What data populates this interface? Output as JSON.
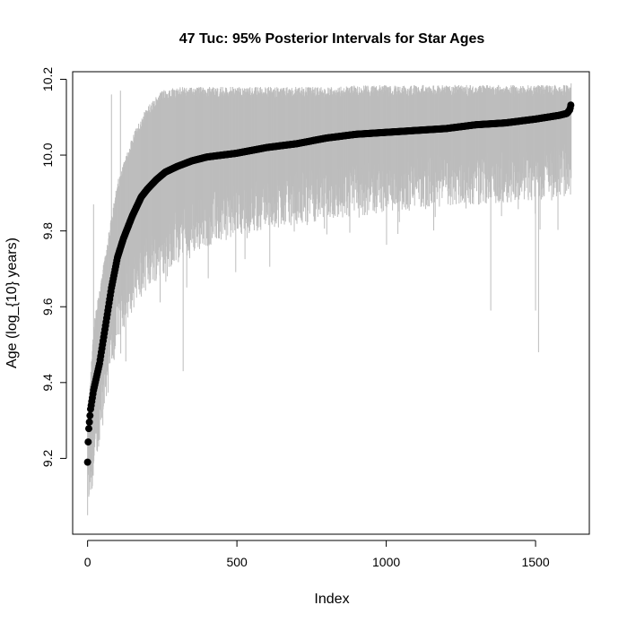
{
  "chart_data": {
    "type": "scatter",
    "title": "47 Tuc: 95% Posterior Intervals for Star Ages",
    "xlabel": "Index",
    "ylabel": "Age (log_{10} years)",
    "xlim": [
      -50,
      1680
    ],
    "ylim": [
      9.0,
      10.22
    ],
    "x_ticks": [
      0,
      500,
      1000,
      1500
    ],
    "x_tick_labels": [
      "0",
      "500",
      "1000",
      "1500"
    ],
    "y_ticks": [
      9.2,
      9.4,
      9.6,
      9.8,
      10.0,
      10.2
    ],
    "y_tick_labels": [
      "9.2",
      "9.4",
      "9.6",
      "9.8",
      "10.0",
      "10.2"
    ],
    "grid": false,
    "legend": "none",
    "n_points": 1620,
    "median_curve": {
      "x": [
        0,
        3,
        10,
        20,
        40,
        60,
        80,
        100,
        120,
        150,
        180,
        200,
        230,
        260,
        300,
        350,
        400,
        500,
        600,
        700,
        800,
        900,
        1000,
        1100,
        1200,
        1300,
        1400,
        1500,
        1580,
        1605,
        1615,
        1620
      ],
      "y": [
        9.19,
        9.27,
        9.33,
        9.38,
        9.45,
        9.55,
        9.65,
        9.73,
        9.78,
        9.84,
        9.89,
        9.91,
        9.935,
        9.955,
        9.97,
        9.985,
        9.995,
        10.005,
        10.02,
        10.03,
        10.045,
        10.055,
        10.06,
        10.065,
        10.07,
        10.08,
        10.085,
        10.095,
        10.105,
        10.11,
        10.12,
        10.14
      ]
    },
    "interval_upper_envelope": {
      "x": [
        0,
        20,
        50,
        100,
        150,
        200,
        250,
        300,
        400,
        500,
        700,
        1000,
        1300,
        1600,
        1620
      ],
      "y": [
        9.3,
        9.55,
        9.7,
        9.93,
        10.05,
        10.13,
        10.17,
        10.18,
        10.18,
        10.18,
        10.18,
        10.185,
        10.185,
        10.185,
        10.19
      ]
    },
    "interval_lower_envelope": {
      "x": [
        0,
        20,
        50,
        100,
        150,
        200,
        300,
        400,
        500,
        700,
        1000,
        1300,
        1600,
        1620
      ],
      "y": [
        9.1,
        9.17,
        9.35,
        9.55,
        9.63,
        9.69,
        9.76,
        9.8,
        9.83,
        9.86,
        9.89,
        9.91,
        9.93,
        9.95
      ]
    },
    "long_interval_lows": [
      {
        "x": 0,
        "y": 9.05
      },
      {
        "x": 15,
        "y": 9.12
      },
      {
        "x": 320,
        "y": 9.43
      },
      {
        "x": 1350,
        "y": 9.59
      },
      {
        "x": 1500,
        "y": 9.59
      },
      {
        "x": 1510,
        "y": 9.48
      },
      {
        "x": 1620,
        "y": 9.56
      }
    ],
    "long_interval_highs": [
      {
        "x": 20,
        "y": 9.87
      },
      {
        "x": 80,
        "y": 10.16
      },
      {
        "x": 110,
        "y": 10.17
      }
    ],
    "colors": {
      "interval": "#bdbdbd",
      "point": "#000000",
      "axis": "#000000"
    }
  }
}
